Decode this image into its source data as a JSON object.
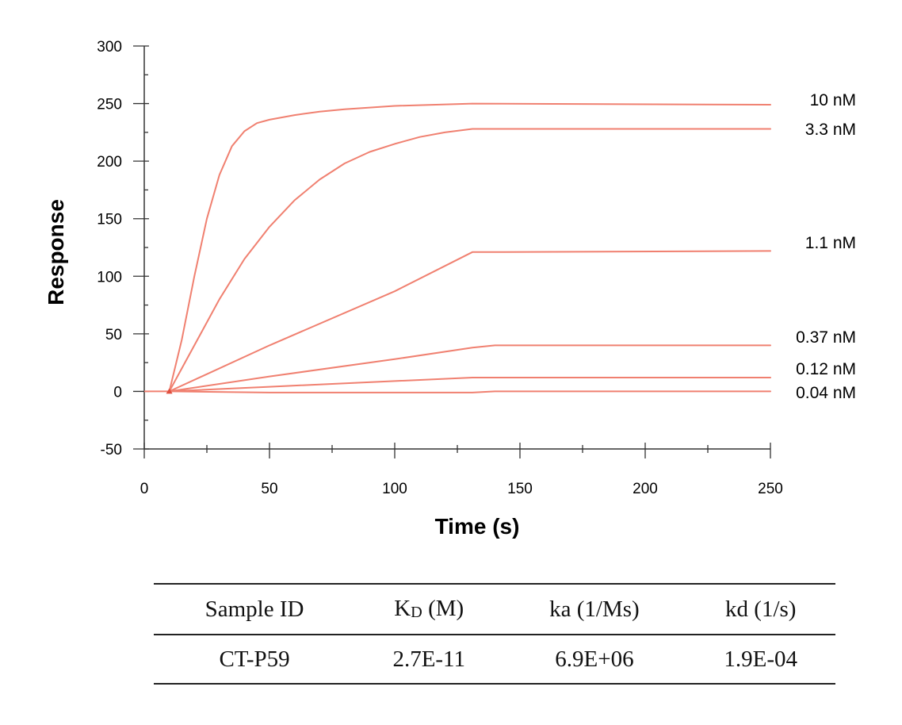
{
  "chart_data": {
    "type": "line",
    "xlabel": "Time (s)",
    "ylabel": "Response",
    "xlim": [
      0,
      250
    ],
    "ylim": [
      -50,
      300
    ],
    "xticks": [
      0,
      50,
      100,
      150,
      200,
      250
    ],
    "yticks": [
      -50,
      0,
      50,
      100,
      150,
      200,
      250,
      300
    ],
    "grid": false,
    "line_color": "#f08070",
    "association_start": 10,
    "dissociation_start": 131,
    "series": [
      {
        "name": "10 nM",
        "x": [
          10,
          15,
          20,
          25,
          30,
          35,
          40,
          45,
          50,
          55,
          60,
          70,
          80,
          100,
          131,
          250
        ],
        "values": [
          0,
          45,
          100,
          150,
          188,
          213,
          226,
          233,
          236,
          238,
          240,
          243,
          245,
          248,
          250,
          249
        ]
      },
      {
        "name": "3.3 nM",
        "x": [
          10,
          20,
          30,
          40,
          50,
          60,
          70,
          80,
          90,
          100,
          110,
          120,
          131,
          250
        ],
        "values": [
          0,
          40,
          80,
          115,
          143,
          166,
          184,
          198,
          208,
          215,
          221,
          225,
          228,
          228
        ]
      },
      {
        "name": "1.1 nM",
        "x": [
          10,
          50,
          100,
          131,
          140,
          250
        ],
        "values": [
          0,
          40,
          87,
          121,
          121,
          122
        ]
      },
      {
        "name": "0.37 nM",
        "x": [
          10,
          50,
          100,
          131,
          140,
          250
        ],
        "values": [
          0,
          13,
          28,
          38,
          40,
          40
        ]
      },
      {
        "name": "0.12 nM",
        "x": [
          10,
          50,
          100,
          131,
          140,
          250
        ],
        "values": [
          0,
          4,
          9,
          12,
          12,
          12
        ]
      },
      {
        "name": "0.04 nM",
        "x": [
          10,
          50,
          100,
          131,
          140,
          250
        ],
        "values": [
          0,
          -1,
          -1,
          -1,
          0,
          0
        ]
      }
    ]
  },
  "table": {
    "headers": {
      "sample_id": "Sample ID",
      "kd_symbol": "K",
      "kd_sub": "D",
      "kd_unit": " (M)",
      "ka": "ka (1/Ms)",
      "koff": "kd (1/s)"
    },
    "row": {
      "sample_id": "CT-P59",
      "KD": "2.7E-11",
      "ka": "6.9E+06",
      "kd": "1.9E-04"
    }
  }
}
